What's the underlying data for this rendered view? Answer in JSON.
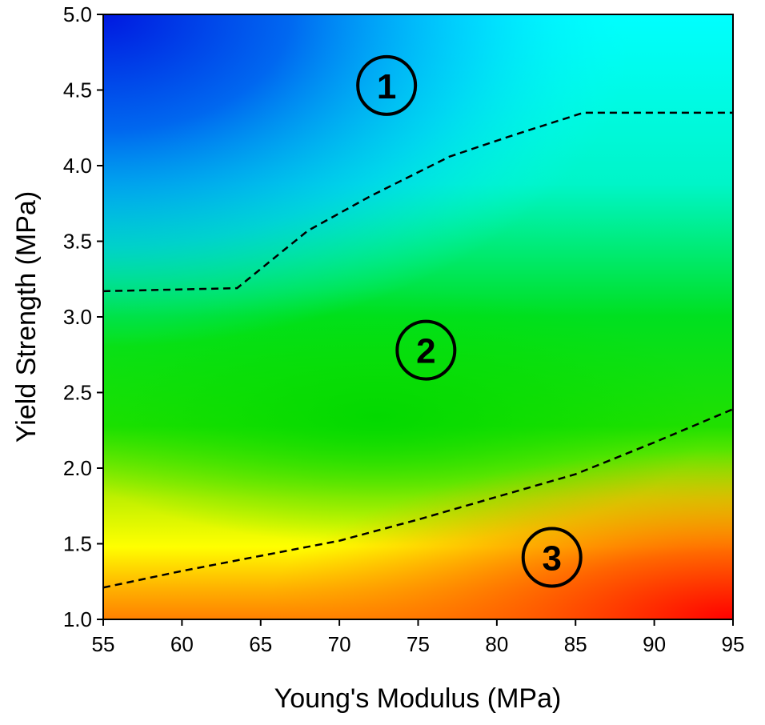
{
  "chart_data": {
    "type": "heatmap",
    "title": "",
    "xlabel": "Young's Modulus (MPa)",
    "ylabel": "Yield Strength (MPa)",
    "xlim": [
      55,
      95
    ],
    "ylim": [
      1.0,
      5.0
    ],
    "x_ticks": [
      "55",
      "60",
      "65",
      "70",
      "75",
      "80",
      "85",
      "90",
      "95"
    ],
    "x_tick_values": [
      55,
      60,
      65,
      70,
      75,
      80,
      85,
      90,
      95
    ],
    "y_ticks": [
      "1.0",
      "1.5",
      "2.0",
      "2.5",
      "3.0",
      "3.5",
      "4.0",
      "4.5",
      "5.0"
    ],
    "y_tick_values": [
      1.0,
      1.5,
      2.0,
      2.5,
      3.0,
      3.5,
      4.0,
      4.5,
      5.0
    ],
    "colormap": "jet (blue low, red high)",
    "boundaries": [
      {
        "name": "upper-boundary",
        "x": [
          55,
          63.5,
          68,
          72,
          77,
          81,
          85.5,
          95
        ],
        "y": [
          3.17,
          3.19,
          3.57,
          3.8,
          4.06,
          4.2,
          4.35,
          4.35
        ]
      },
      {
        "name": "lower-boundary",
        "x": [
          55,
          60,
          65,
          70,
          75,
          80,
          85,
          90,
          95
        ],
        "y": [
          1.21,
          1.32,
          1.42,
          1.52,
          1.66,
          1.81,
          1.96,
          2.17,
          2.39
        ]
      }
    ],
    "regions": [
      {
        "label": "1",
        "x": 73,
        "y": 4.53
      },
      {
        "label": "2",
        "x": 75.5,
        "y": 2.78
      },
      {
        "label": "3",
        "x": 83.5,
        "y": 1.41
      }
    ]
  }
}
